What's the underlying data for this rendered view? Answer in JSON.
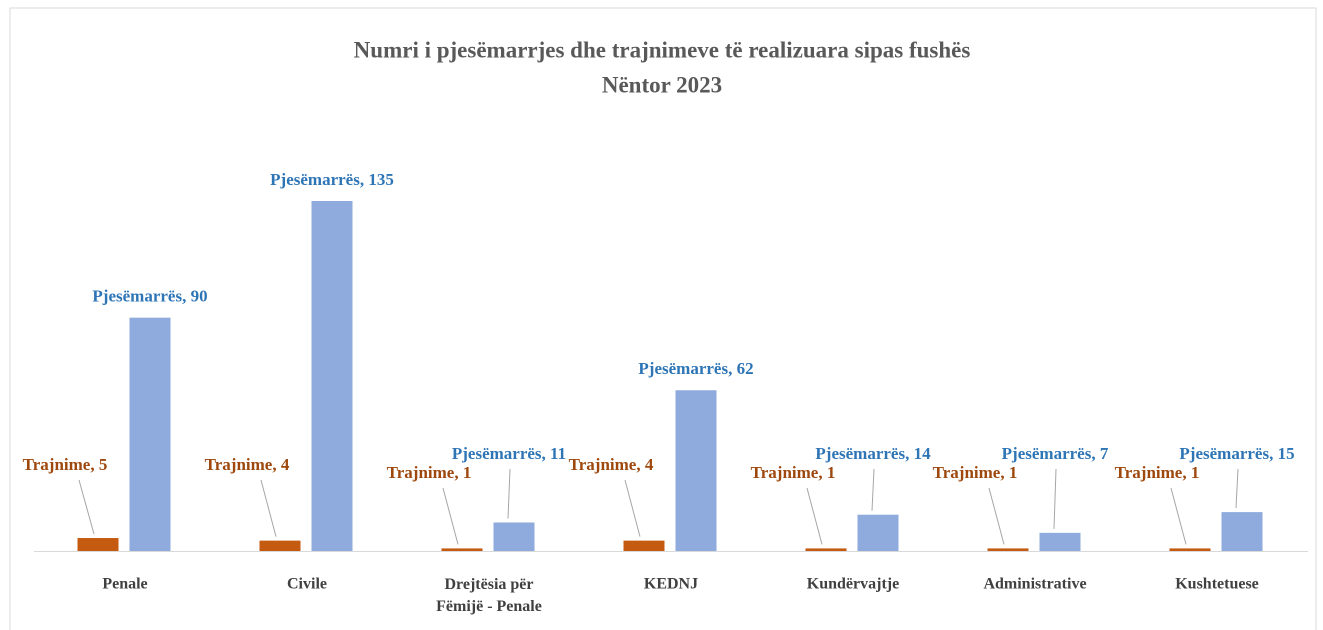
{
  "chart_data": {
    "type": "bar",
    "title": "Numri i pjesëmarrjes dhe trajnimeve të realizuara sipas fushës",
    "subtitle": "Nëntor 2023",
    "categories": [
      "Penale",
      "Civile",
      "Drejtësia për Fëmijë - Penale",
      "KEDNJ",
      "Kundërvajtje",
      "Administrative",
      "Kushtetuese"
    ],
    "series": [
      {
        "name": "Trajnime",
        "color": "#c55a11",
        "values": [
          5,
          4,
          1,
          4,
          1,
          1,
          1
        ],
        "value_labels": [
          "Trajnime, 5",
          "Trajnime, 4",
          "Trajnime, 1",
          "Trajnime, 4",
          "Trajnime, 1",
          "Trajnime, 1",
          "Trajnime, 1"
        ]
      },
      {
        "name": "Pjesëmarrës",
        "color": "#8faadc",
        "values": [
          90,
          135,
          11,
          62,
          14,
          7,
          15
        ],
        "value_labels": [
          "Pjesëmarrës, 90",
          "Pjesëmarrës, 135",
          "Pjesëmarrës, 11",
          "Pjesëmarrës, 62",
          "Pjesëmarrës, 14",
          "Pjesëmarrës, 7",
          "Pjesëmarrës, 15"
        ]
      }
    ]
  }
}
